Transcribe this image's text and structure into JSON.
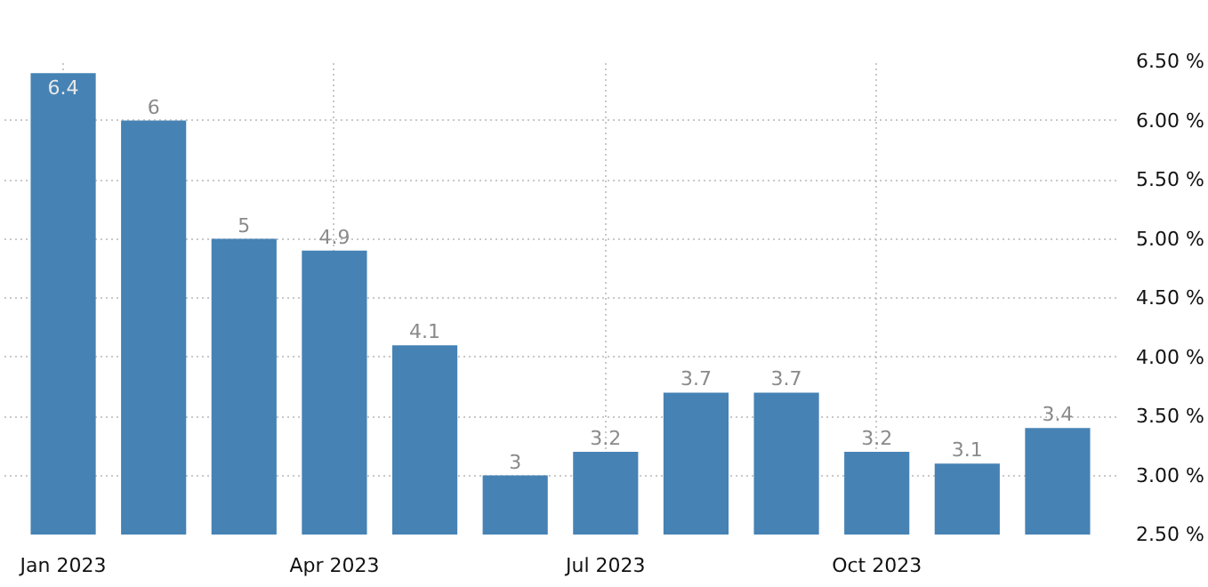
{
  "chart_data": {
    "type": "bar",
    "categories": [
      "Jan 2023",
      null,
      null,
      "Apr 2023",
      null,
      null,
      "Jul 2023",
      null,
      null,
      "Oct 2023",
      null,
      null
    ],
    "values": [
      6.4,
      6,
      5,
      4.9,
      4.1,
      3,
      3.2,
      3.7,
      3.7,
      3.2,
      3.1,
      3.4
    ],
    "color": "#4682b4",
    "ylim": [
      2.5,
      6.5
    ],
    "yticks": [
      {
        "value": 2.5,
        "label": "2.50 %"
      },
      {
        "value": 3,
        "label": "3.00 %"
      },
      {
        "value": 3.5,
        "label": "3.50 %"
      },
      {
        "value": 4,
        "label": "4.00 %"
      },
      {
        "value": 4.5,
        "label": "4.50 %"
      },
      {
        "value": 5,
        "label": "5.00 %"
      },
      {
        "value": 5.5,
        "label": "5.50 %"
      },
      {
        "value": 6,
        "label": "6.00 %"
      },
      {
        "value": 6.5,
        "label": "6.50 %"
      }
    ],
    "grid": true,
    "data_labels": true
  }
}
